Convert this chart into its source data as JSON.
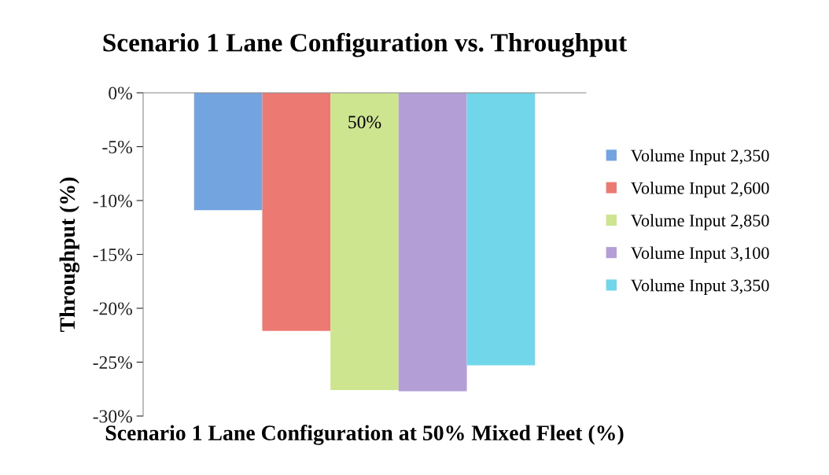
{
  "chart_data": {
    "type": "bar",
    "title": "Scenario 1 Lane Configuration vs. Throughput",
    "xlabel": "Scenario 1 Lane Configuration at 50% Mixed Fleet (%)",
    "ylabel": "Throughput (%)",
    "categories": [
      "50%"
    ],
    "series": [
      {
        "name": "Volume Input 2,350",
        "color": "#73a4e0",
        "values": [
          -10.9
        ]
      },
      {
        "name": "Volume Input 2,600",
        "color": "#ec7a72",
        "values": [
          -22.1
        ]
      },
      {
        "name": "Volume Input 2,850",
        "color": "#cde58e",
        "values": [
          -27.6
        ]
      },
      {
        "name": "Volume Input 3,100",
        "color": "#b39ed6",
        "values": [
          -27.7
        ]
      },
      {
        "name": "Volume Input 3,350",
        "color": "#72d6ea",
        "values": [
          -25.3
        ]
      }
    ],
    "ylim": [
      -30,
      0
    ],
    "yticks": [
      {
        "value": 0,
        "label": "0%"
      },
      {
        "value": -5,
        "label": "-5%"
      },
      {
        "value": -10,
        "label": "-10%"
      },
      {
        "value": -15,
        "label": "-15%"
      },
      {
        "value": -20,
        "label": "-20%"
      },
      {
        "value": -25,
        "label": "-25%"
      },
      {
        "value": -30,
        "label": "-30%"
      }
    ],
    "grid": false,
    "legend": "right"
  }
}
